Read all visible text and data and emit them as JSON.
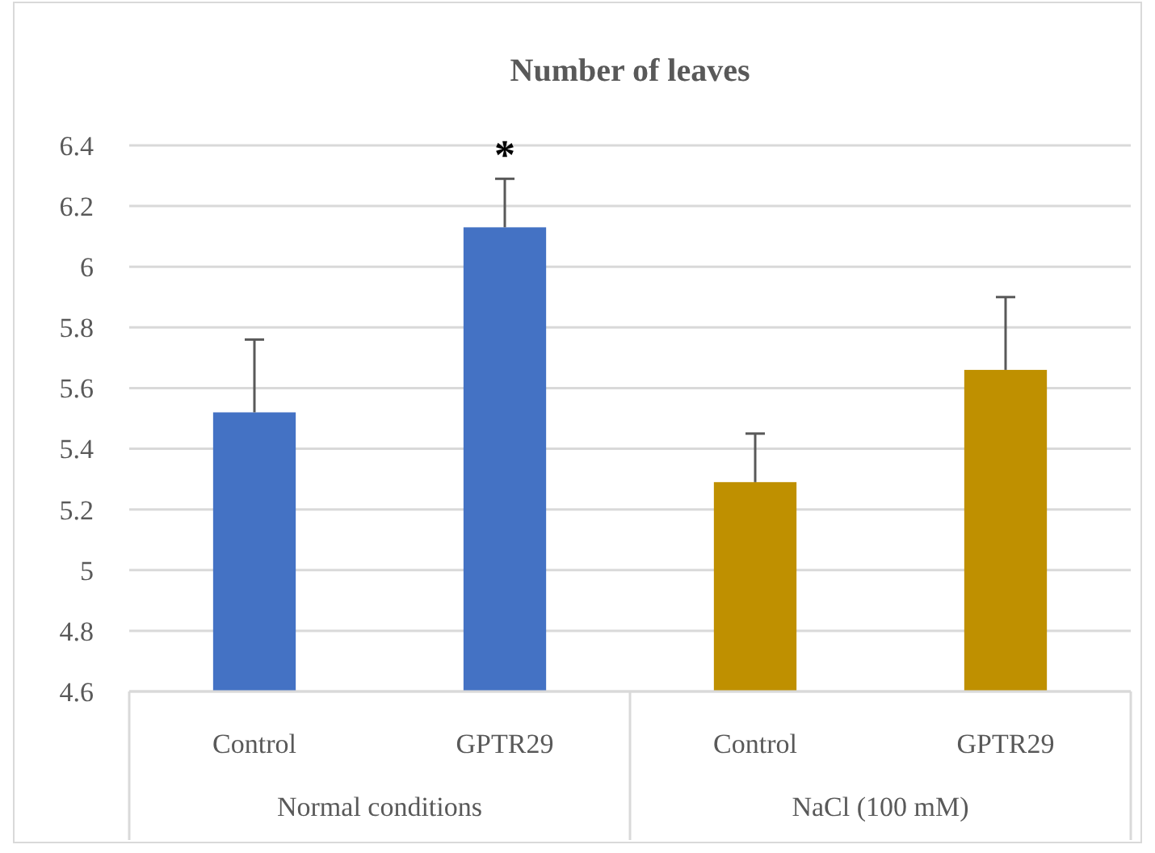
{
  "chart_data": {
    "type": "bar",
    "title": "Number of leaves",
    "categories": [
      "Control",
      "GPTR29",
      "Control",
      "GPTR29"
    ],
    "values": [
      5.52,
      6.13,
      5.29,
      5.66
    ],
    "colors": [
      "#4472c4",
      "#4472c4",
      "#bf9000",
      "#bf9000"
    ],
    "errors": [
      0.24,
      0.16,
      0.16,
      0.24
    ],
    "ylim": [
      4.6,
      6.4
    ],
    "yticks": [
      4.6,
      4.8,
      5,
      5.2,
      5.4,
      5.6,
      5.8,
      6,
      6.2,
      6.4
    ],
    "grid": "y",
    "annotations": [
      "*",
      "Normal conditions",
      "NaCl (100 mM)"
    ]
  }
}
